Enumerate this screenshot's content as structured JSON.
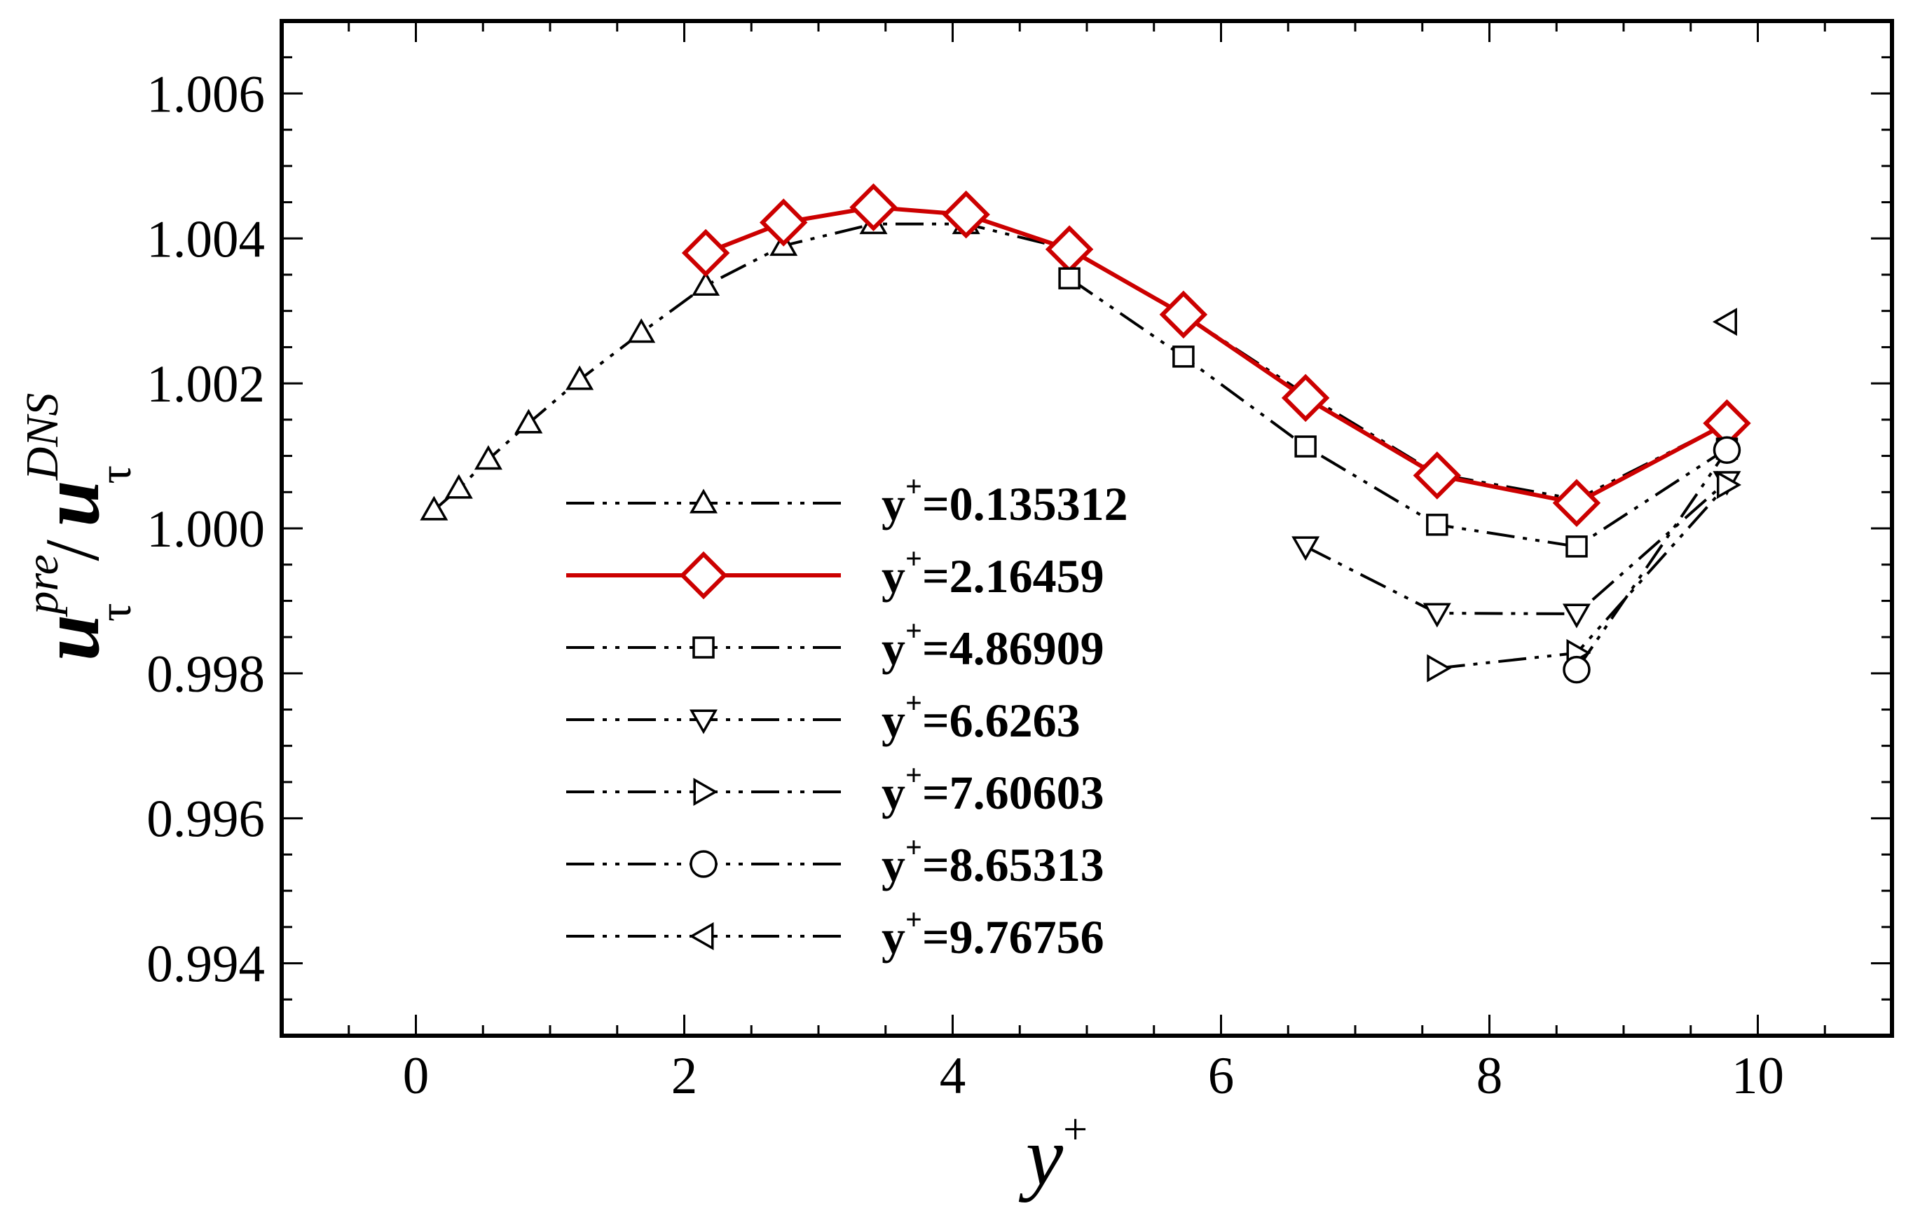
{
  "chart_data": {
    "type": "line",
    "title": "",
    "xlabel": {
      "base": "y",
      "sup": "+"
    },
    "ylabel": {
      "numerator": {
        "base": "u",
        "sub": "τ",
        "sup": "pre"
      },
      "separator": "/",
      "denominator": {
        "base": "u",
        "sub": "τ",
        "sup": "DNS"
      }
    },
    "xlim": [
      -1,
      11
    ],
    "ylim": [
      0.993,
      1.007
    ],
    "xticks": [
      0,
      2,
      4,
      6,
      8,
      10
    ],
    "xtick_labels": [
      "0",
      "2",
      "4",
      "6",
      "8",
      "10"
    ],
    "yticks": [
      0.994,
      0.996,
      0.998,
      1.0,
      1.002,
      1.004,
      1.006
    ],
    "ytick_labels": [
      "0.994",
      "0.996",
      "0.998",
      "1.000",
      "1.002",
      "1.004",
      "1.006"
    ],
    "grid": false,
    "legend_position": "center-left",
    "series": [
      {
        "name": "y+=0.135312",
        "legend": {
          "base": "y",
          "sup": "+",
          "rest": "=0.135312"
        },
        "marker": "triangle-up",
        "line": "dashdotdot",
        "color": "#000000",
        "x": [
          0.135,
          0.32,
          0.54,
          0.84,
          1.22,
          1.68,
          2.16,
          2.74,
          3.41,
          4.1,
          4.87,
          5.72,
          6.63,
          7.61,
          8.65,
          9.77
        ],
        "y": [
          1.00025,
          1.00055,
          1.00095,
          1.00145,
          1.00205,
          1.0027,
          1.00335,
          1.0039,
          1.0042,
          1.0042,
          1.00385,
          1.00295,
          1.00185,
          1.00075,
          1.0004,
          1.00145
        ]
      },
      {
        "name": "y+=2.16459",
        "legend": {
          "base": "y",
          "sup": "+",
          "rest": "=2.16459"
        },
        "marker": "diamond",
        "line": "solid",
        "color": "#cc0000",
        "x": [
          2.16,
          2.74,
          3.41,
          4.1,
          4.87,
          5.72,
          6.63,
          7.61,
          8.65,
          9.77
        ],
        "y": [
          1.0038,
          1.00422,
          1.00443,
          1.00433,
          1.00385,
          1.00295,
          1.0018,
          1.00073,
          1.00035,
          1.00145
        ]
      },
      {
        "name": "y+=4.86909",
        "legend": {
          "base": "y",
          "sup": "+",
          "rest": "=4.86909"
        },
        "marker": "square",
        "line": "dashdotdot",
        "color": "#000000",
        "x": [
          4.87,
          5.72,
          6.63,
          7.61,
          8.65,
          9.77
        ],
        "y": [
          1.00345,
          1.00237,
          1.00113,
          1.00005,
          0.99975,
          1.0011
        ]
      },
      {
        "name": "y+=6.6263",
        "legend": {
          "base": "y",
          "sup": "+",
          "rest": "=6.6263"
        },
        "marker": "triangle-down",
        "line": "dashdotdot",
        "color": "#000000",
        "x": [
          6.63,
          7.61,
          8.65,
          9.77
        ],
        "y": [
          0.99975,
          0.99883,
          0.99882,
          1.00065
        ]
      },
      {
        "name": "y+=7.60603",
        "legend": {
          "base": "y",
          "sup": "+",
          "rest": "=7.60603"
        },
        "marker": "triangle-right",
        "line": "dashdotdot",
        "color": "#000000",
        "x": [
          7.61,
          8.65,
          9.77
        ],
        "y": [
          0.99807,
          0.99828,
          1.0006
        ]
      },
      {
        "name": "y+=8.65313",
        "legend": {
          "base": "y",
          "sup": "+",
          "rest": "=8.65313"
        },
        "marker": "circle",
        "line": "dashdotdot",
        "color": "#000000",
        "x": [
          8.65,
          9.77
        ],
        "y": [
          0.99805,
          1.00108
        ]
      },
      {
        "name": "y+=9.76756",
        "legend": {
          "base": "y",
          "sup": "+",
          "rest": "=9.76756"
        },
        "marker": "triangle-left",
        "line": "dashdotdot",
        "color": "#000000",
        "x": [
          9.77
        ],
        "y": [
          1.00285
        ]
      }
    ]
  }
}
